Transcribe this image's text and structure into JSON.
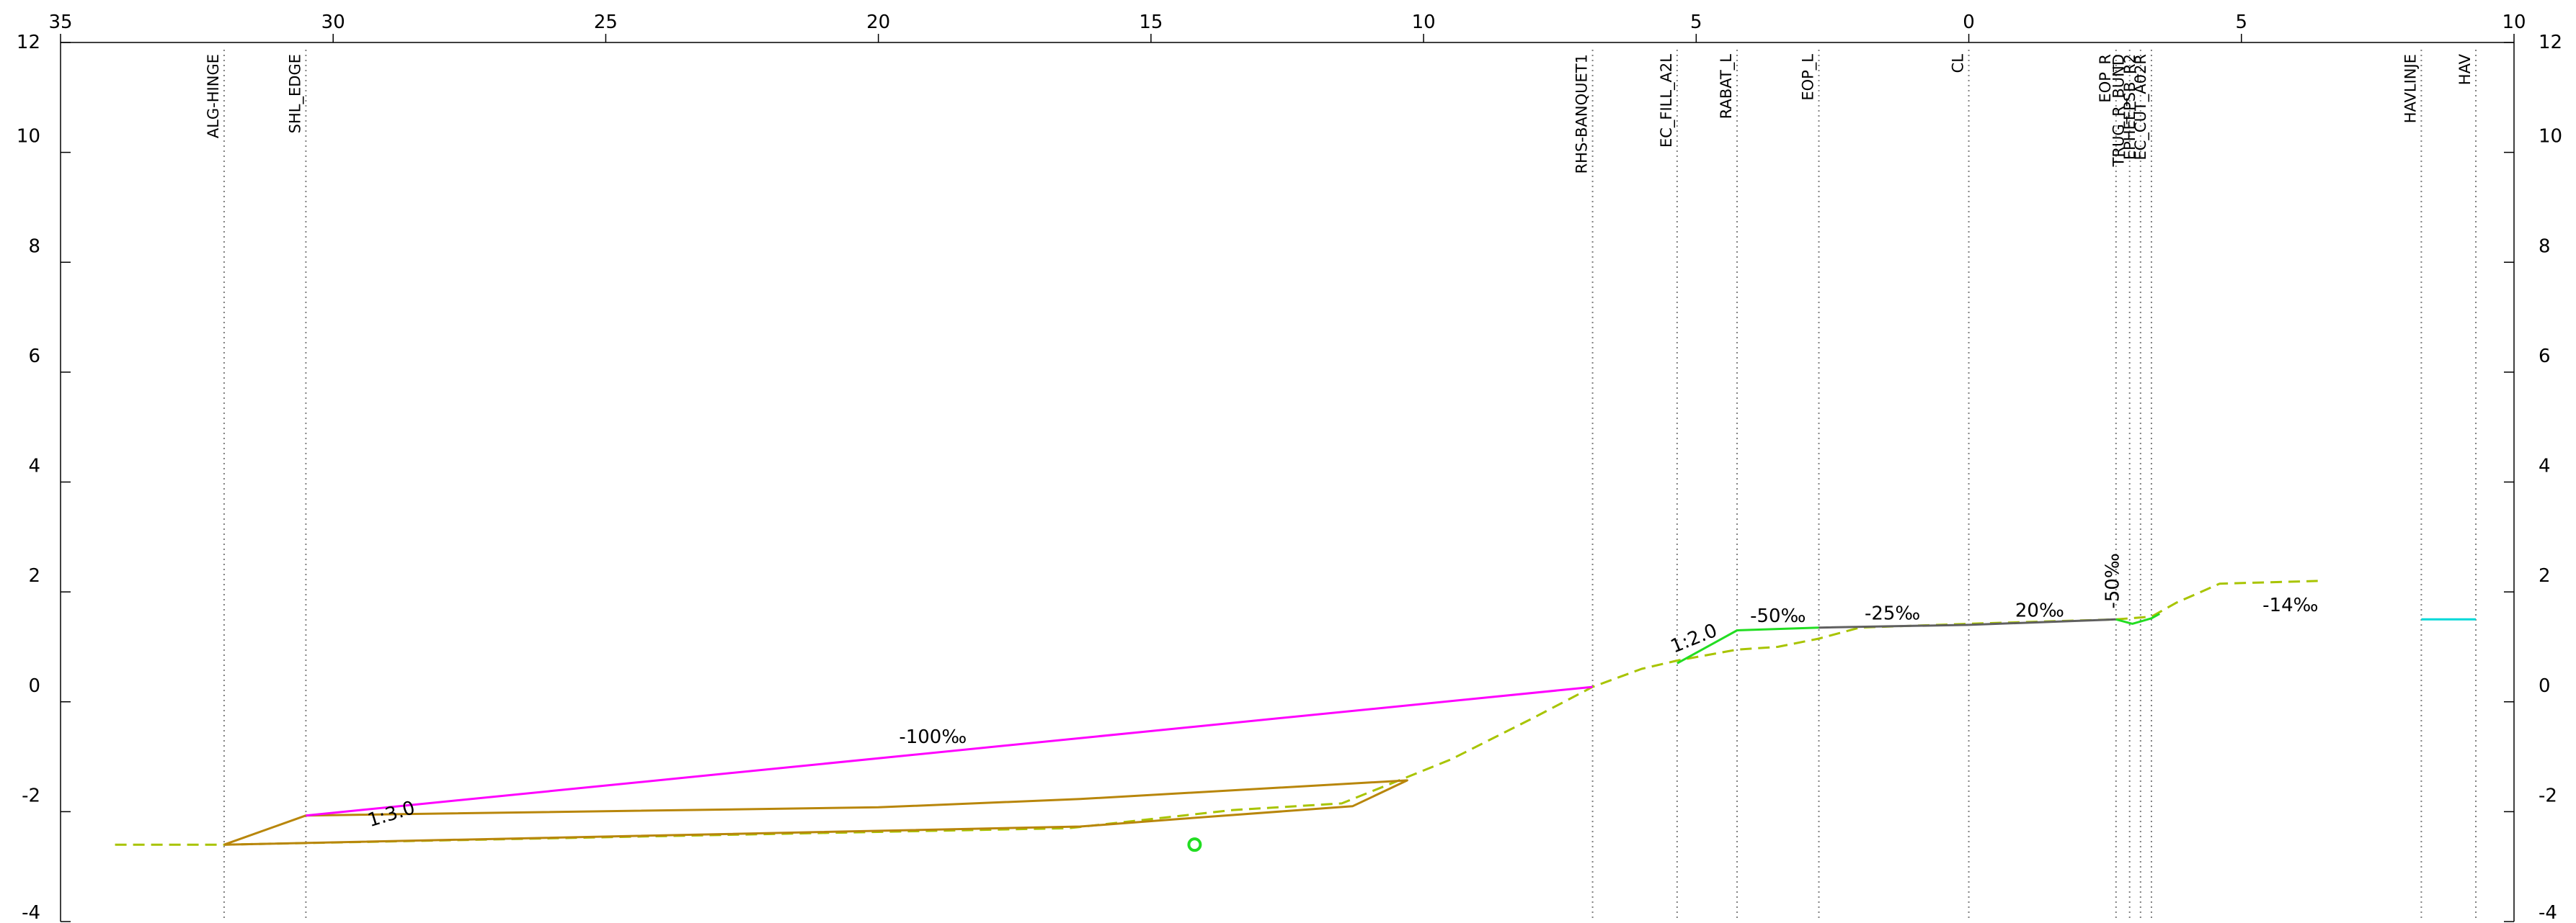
{
  "x_ticks": [
    {
      "value": 35,
      "label": "35"
    },
    {
      "value": 30,
      "label": "30"
    },
    {
      "value": 25,
      "label": "25"
    },
    {
      "value": 20,
      "label": "20"
    },
    {
      "value": 15,
      "label": "15"
    },
    {
      "value": 10,
      "label": "10"
    },
    {
      "value": 5,
      "label": "5"
    },
    {
      "value": 0,
      "label": "0"
    },
    {
      "value": -5,
      "label": "5"
    },
    {
      "value": -10,
      "label": "10"
    }
  ],
  "y_ticks": [
    {
      "value": 12,
      "label": "12"
    },
    {
      "value": 10,
      "label": "10"
    },
    {
      "value": 8,
      "label": "8"
    },
    {
      "value": 6,
      "label": "6"
    },
    {
      "value": 4,
      "label": "4"
    },
    {
      "value": 2,
      "label": "2"
    },
    {
      "value": 0,
      "label": "0"
    },
    {
      "value": -2,
      "label": "-2"
    },
    {
      "value": -4,
      "label": "-4"
    }
  ],
  "offset_lines": [
    {
      "x": 32.0,
      "label": "ALG-HINGE"
    },
    {
      "x": 30.5,
      "label": "SHL_EDGE"
    },
    {
      "x": 6.9,
      "label": "RHS-BANQUET1"
    },
    {
      "x": 5.35,
      "label": "EC_FILL_A2L"
    },
    {
      "x": 4.25,
      "label": "RABAT_L"
    },
    {
      "x": 2.75,
      "label": "EOP_L"
    },
    {
      "x": 0.0,
      "label": "CL"
    },
    {
      "x": -2.7,
      "label": "EOP_R"
    },
    {
      "x": -2.95,
      "label": "TRUG_R_BUND"
    },
    {
      "x": -3.15,
      "label": "EPHEEPSB_R2"
    },
    {
      "x": -3.35,
      "label": "EC_CUT_A02R"
    },
    {
      "x": -8.3,
      "label": "HAVLINJE"
    },
    {
      "x": -9.3,
      "label": "HAV"
    }
  ],
  "slope_labels": [
    {
      "x": 28.9,
      "y": -2.15,
      "text": "1:3.0",
      "angle": -17
    },
    {
      "x": 19.0,
      "y": -0.75,
      "text": "-100‰",
      "angle": 0
    },
    {
      "x": 5.0,
      "y": 1.05,
      "text": "1:2.0",
      "angle": -22
    },
    {
      "x": 3.5,
      "y": 1.45,
      "text": "-50‰",
      "angle": 0
    },
    {
      "x": 1.4,
      "y": 1.5,
      "text": "-25‰",
      "angle": 0
    },
    {
      "x": -1.3,
      "y": 1.55,
      "text": "20‰",
      "angle": 0
    },
    {
      "x": -2.75,
      "y": 2.2,
      "text": "-50‰",
      "angle": -90
    },
    {
      "x": -5.9,
      "y": 1.65,
      "text": "-14‰",
      "angle": 0
    }
  ],
  "profiles": [
    {
      "name": "existing-ground",
      "color": "#a8c400",
      "dashed": true,
      "points": [
        [
          34.0,
          -2.6
        ],
        [
          32.0,
          -2.6
        ],
        [
          16.5,
          -2.3
        ],
        [
          13.5,
          -1.97
        ],
        [
          11.5,
          -1.85
        ],
        [
          9.5,
          -1.05
        ],
        [
          8.0,
          -0.3
        ],
        [
          6.9,
          0.27
        ],
        [
          6.0,
          0.6
        ],
        [
          5.35,
          0.75
        ],
        [
          4.25,
          0.95
        ],
        [
          3.5,
          1.0
        ],
        [
          2.75,
          1.15
        ],
        [
          2.0,
          1.35
        ],
        [
          0.0,
          1.42
        ],
        [
          -2.7,
          1.5
        ],
        [
          -3.35,
          1.55
        ],
        [
          -3.8,
          1.8
        ],
        [
          -4.6,
          2.15
        ],
        [
          -6.4,
          2.2
        ]
      ]
    },
    {
      "name": "fill-slope-left",
      "color": "#b8860b",
      "dashed": false,
      "points": [
        [
          32.0,
          -2.6
        ],
        [
          30.5,
          -2.07
        ],
        [
          20.0,
          -1.92
        ],
        [
          16.3,
          -1.77
        ],
        [
          10.3,
          -1.43
        ],
        [
          11.3,
          -1.9
        ],
        [
          14.3,
          -2.12
        ],
        [
          16.3,
          -2.27
        ],
        [
          32.0,
          -2.6
        ]
      ]
    },
    {
      "name": "subgrade",
      "color": "#ff00ff",
      "dashed": false,
      "points": [
        [
          30.5,
          -2.07
        ],
        [
          6.9,
          0.27
        ]
      ]
    },
    {
      "name": "verge-left",
      "color": "#22dd22",
      "dashed": false,
      "points": [
        [
          5.35,
          0.7
        ],
        [
          4.25,
          1.3
        ],
        [
          2.75,
          1.35
        ]
      ]
    },
    {
      "name": "carriageway",
      "color": "#606060",
      "dashed": false,
      "points": [
        [
          2.75,
          1.35
        ],
        [
          0.0,
          1.4
        ],
        [
          -2.7,
          1.5
        ]
      ]
    },
    {
      "name": "verge-right",
      "color": "#22dd22",
      "dashed": false,
      "points": [
        [
          -2.7,
          1.5
        ],
        [
          -3.0,
          1.42
        ],
        [
          -3.35,
          1.52
        ],
        [
          -3.5,
          1.6
        ]
      ]
    },
    {
      "name": "sea-level",
      "color": "#00d8d8",
      "dashed": false,
      "points": [
        [
          -8.3,
          1.5
        ],
        [
          -9.3,
          1.5
        ]
      ]
    }
  ],
  "markers": [
    {
      "name": "point-marker",
      "x": 14.2,
      "y": -2.6,
      "color": "#22dd22"
    }
  ],
  "colors": {
    "axis": "#000000",
    "gridline": "#808080"
  }
}
